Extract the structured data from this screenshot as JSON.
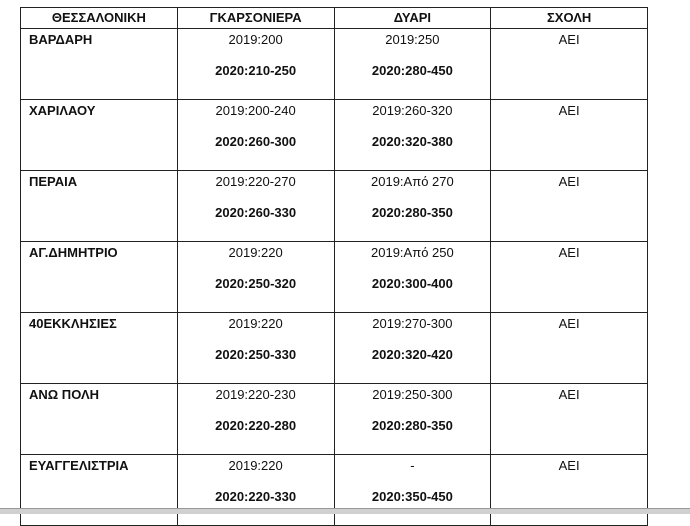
{
  "headers": [
    "ΘΕΣΣΑΛΟΝΙΚΗ",
    "ΓΚΑΡΣΟΝΙΕΡΑ",
    "ΔΥΑΡΙ",
    "ΣΧΟΛΗ"
  ],
  "rows": [
    {
      "area": "ΒΑΡΔΑΡΗ",
      "studio_2019": "2019:200",
      "studio_2020": "2020:210-250",
      "twoRoom_2019": "2019:250",
      "twoRoom_2020": "2020:280-450",
      "school": "ΑΕΙ"
    },
    {
      "area": "ΧΑΡΙΛΑΟΥ",
      "studio_2019": "2019:200-240",
      "studio_2020": "2020:260-300",
      "twoRoom_2019": "2019:260-320",
      "twoRoom_2020": "2020:320-380",
      "school": "ΑΕΙ"
    },
    {
      "area": "ΠΕΡΑΙΑ",
      "studio_2019": "2019:220-270",
      "studio_2020": "2020:260-330",
      "twoRoom_2019": "2019:Από 270",
      "twoRoom_2020": "2020:280-350",
      "school": "ΑΕΙ"
    },
    {
      "area": "ΑΓ.ΔΗΜΗΤΡΙΟ",
      "studio_2019": "2019:220",
      "studio_2020": "2020:250-320",
      "twoRoom_2019": "2019:Από 250",
      "twoRoom_2020": "2020:300-400",
      "school": "ΑΕΙ"
    },
    {
      "area": "40ΕΚΚΛΗΣΙΕΣ",
      "studio_2019": "2019:220",
      "studio_2020": "2020:250-330",
      "twoRoom_2019": "2019:270-300",
      "twoRoom_2020": "2020:320-420",
      "school": "ΑΕΙ"
    },
    {
      "area": "ΑΝΩ ΠΟΛΗ",
      "studio_2019": "2019:220-230",
      "studio_2020": "2020:220-280",
      "twoRoom_2019": "2019:250-300",
      "twoRoom_2020": "2020:280-350",
      "school": "ΑΕΙ"
    },
    {
      "area": "ΕΥΑΓΓΕΛΙΣΤΡΙΑ",
      "studio_2019": "2019:220",
      "studio_2020": "2020:220-330",
      "twoRoom_2019": "-",
      "twoRoom_2020": "2020:350-450",
      "school": "ΑΕΙ"
    }
  ]
}
